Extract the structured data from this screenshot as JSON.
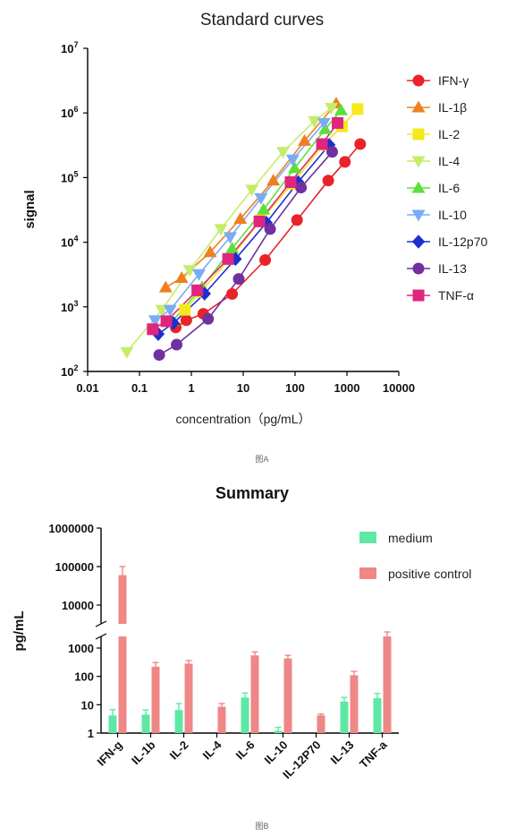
{
  "chart_data": [
    {
      "type": "scatter",
      "title": "Standard curves",
      "xlabel": "concentration（pg/mL）",
      "ylabel": "signal",
      "xscale": "log",
      "yscale": "log",
      "xlim": [
        0.01,
        10000
      ],
      "ylim": [
        100,
        10000000
      ],
      "x_ticks": [
        "0.01",
        "0.1",
        "1",
        "10",
        "100",
        "1000",
        "10000"
      ],
      "y_ticks": [
        {
          "base": "10",
          "exp": "2"
        },
        {
          "base": "10",
          "exp": "3"
        },
        {
          "base": "10",
          "exp": "4"
        },
        {
          "base": "10",
          "exp": "5"
        },
        {
          "base": "10",
          "exp": "6"
        },
        {
          "base": "10",
          "exp": "7"
        }
      ],
      "legend_position": "right",
      "caption": "图A",
      "series": [
        {
          "name": "IFN-γ",
          "color": "#e8232a",
          "marker": "circle",
          "x": [
            0.5,
            0.8,
            1.7,
            6.1,
            26.5,
            109,
            436,
            915,
            1800
          ],
          "y": [
            480,
            620,
            780,
            1580,
            5300,
            22000,
            90000,
            175000,
            330000
          ]
        },
        {
          "name": "IL-1β",
          "color": "#f07f1e",
          "marker": "triangle-up",
          "x": [
            0.32,
            0.65,
            2.3,
            8.8,
            38,
            152,
            620
          ],
          "y": [
            2000,
            2800,
            7000,
            23000,
            90000,
            370000,
            1400000
          ]
        },
        {
          "name": "IL-2",
          "color": "#f5e81c",
          "marker": "square",
          "x": [
            0.75,
            1.5,
            5.5,
            22,
            88,
            350,
            800,
            1600
          ],
          "y": [
            900,
            1700,
            5500,
            22000,
            80000,
            320000,
            620000,
            1150000
          ]
        },
        {
          "name": "IL-4",
          "color": "#c6ec6a",
          "marker": "triangle-down",
          "x": [
            0.057,
            0.27,
            0.93,
            3.7,
            14.7,
            58.5,
            235,
            500
          ],
          "y": [
            200,
            900,
            3700,
            16000,
            65000,
            250000,
            750000,
            1200000
          ]
        },
        {
          "name": "IL-6",
          "color": "#5be03b",
          "marker": "triangle-up",
          "x": [
            0.43,
            1.6,
            6.1,
            24.7,
            98,
            380,
            770
          ],
          "y": [
            600,
            2000,
            8000,
            32000,
            140000,
            560000,
            1100000
          ]
        },
        {
          "name": "IL-10",
          "color": "#7aabf5",
          "marker": "triangle-down",
          "x": [
            0.2,
            0.39,
            1.4,
            5.6,
            22,
            90,
            360
          ],
          "y": [
            620,
            900,
            3200,
            12000,
            48000,
            190000,
            700000
          ]
        },
        {
          "name": "IL-12p70",
          "color": "#1e2fcc",
          "marker": "diamond",
          "x": [
            0.23,
            0.45,
            1.8,
            7.1,
            28,
            114,
            455
          ],
          "y": [
            380,
            560,
            1600,
            5500,
            20000,
            85000,
            320000
          ]
        },
        {
          "name": "IL-13",
          "color": "#7030a0",
          "marker": "circle",
          "x": [
            0.24,
            0.52,
            2.1,
            8.2,
            33,
            130,
            520
          ],
          "y": [
            180,
            260,
            650,
            2700,
            16000,
            70000,
            250000
          ]
        },
        {
          "name": "TNF-α",
          "color": "#e0257f",
          "marker": "square",
          "x": [
            0.18,
            0.33,
            1.3,
            5.1,
            20.5,
            82,
            330,
            660
          ],
          "y": [
            450,
            600,
            1800,
            5500,
            21000,
            85000,
            330000,
            700000
          ]
        }
      ]
    },
    {
      "type": "bar",
      "title": "Summary",
      "ylabel": "pg/mL",
      "yscale": "log",
      "y_axis_break": true,
      "caption": "图B",
      "legend_position": "top-right",
      "categories": [
        "IFN-g",
        "IL-1b",
        "IL-2",
        "IL-4",
        "IL-6",
        "IL-10",
        "IL-12P70",
        "IL-13",
        "TNF-a"
      ],
      "y_ticks_upper": [
        "1000000",
        "100000",
        "10000"
      ],
      "y_ticks_lower": [
        "1000",
        "100",
        "10",
        "1"
      ],
      "series": [
        {
          "name": "medium",
          "color": "#5ee8a6",
          "values": [
            4.2,
            4.5,
            6.5,
            null,
            18,
            1.2,
            null,
            13,
            17
          ],
          "errors": [
            2.5,
            2.0,
            4.5,
            null,
            8,
            0.4,
            null,
            5,
            8
          ]
        },
        {
          "name": "positive control",
          "color": "#ef8787",
          "values": [
            60000,
            220,
            280,
            8.5,
            550,
            430,
            4.2,
            110,
            1500
          ],
          "errors": [
            40000,
            90,
            80,
            2.5,
            180,
            120,
            0.5,
            40,
            500
          ]
        }
      ]
    }
  ]
}
